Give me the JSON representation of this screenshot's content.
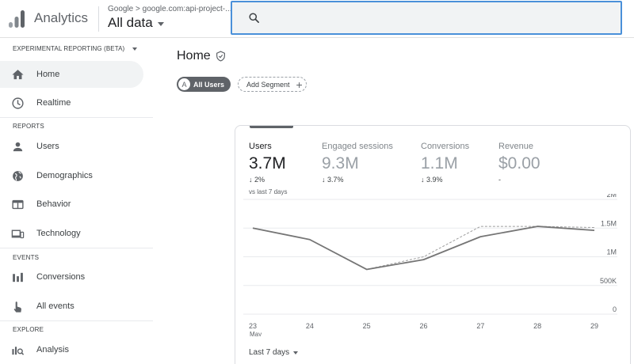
{
  "app": {
    "name": "Analytics",
    "account_path": "Google > google.com:api-project-...",
    "property": "All data",
    "search_placeholder": ""
  },
  "sidebar": {
    "experimental_label": "EXPERIMENTAL REPORTING (BETA)",
    "sections": {
      "reports": "REPORTS",
      "events": "EVENTS",
      "explore": "EXPLORE"
    },
    "items": {
      "home": "Home",
      "realtime": "Realtime",
      "users": "Users",
      "demographics": "Demographics",
      "behavior": "Behavior",
      "technology": "Technology",
      "conversions": "Conversions",
      "all_events": "All events",
      "analysis": "Analysis"
    },
    "active_item": "home"
  },
  "main": {
    "title": "Home",
    "segments": {
      "all_users_badge": "A",
      "all_users": "All Users",
      "add_segment": "Add Segment"
    },
    "card": {
      "metrics": [
        {
          "label": "Users",
          "value": "3.7M",
          "delta": "↓ 2%"
        },
        {
          "label": "Engaged sessions",
          "value": "9.3M",
          "delta": "↓ 3.7%"
        },
        {
          "label": "Conversions",
          "value": "1.1M",
          "delta": "↓ 3.9%"
        },
        {
          "label": "Revenue",
          "value": "$0.00",
          "delta": "-"
        }
      ],
      "compare_label": "vs last 7 days",
      "date_range": "Last 7 days"
    }
  },
  "chart_data": {
    "type": "line",
    "x": [
      "23",
      "24",
      "25",
      "26",
      "27",
      "28",
      "29"
    ],
    "x_sub_label": "May",
    "y_ticks": [
      "2M",
      "1.5M",
      "1M",
      "500K",
      "0"
    ],
    "ylim": [
      0,
      2000000
    ],
    "series": [
      {
        "values": [
          1500000,
          1300000,
          780000,
          950000,
          1350000,
          1530000,
          1460000
        ],
        "color": "#757575",
        "style": "solid"
      },
      {
        "values": [
          1500000,
          1300000,
          780000,
          1000000,
          1530000,
          1530000,
          1510000
        ],
        "color": "#9e9e9e",
        "style": "dashed"
      }
    ],
    "grid": true
  },
  "colors": {
    "accent": "#4a90d9",
    "active_bg": "#f1f3f4",
    "chip": "#5f6368"
  }
}
